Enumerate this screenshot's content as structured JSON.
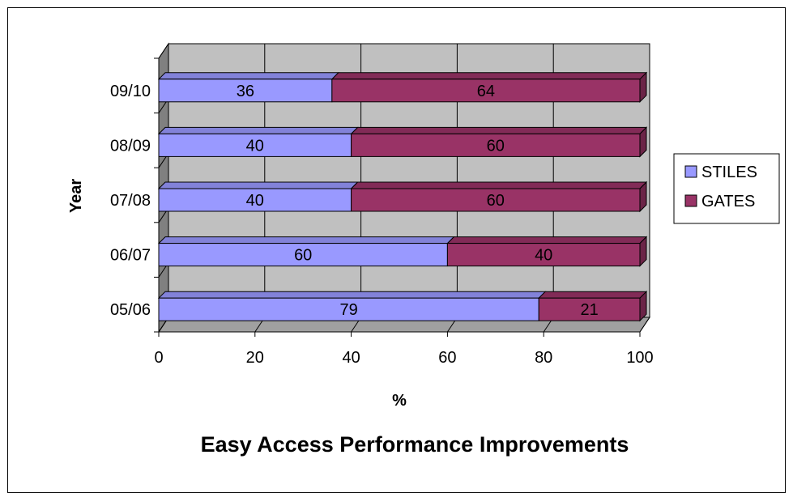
{
  "chart_data": {
    "type": "bar",
    "orientation": "horizontal",
    "stacked": true,
    "three_d": true,
    "title": "Easy Access Performance Improvements",
    "xlabel": "%",
    "ylabel": "Year",
    "xlim": [
      0,
      100
    ],
    "x_ticks": [
      "0",
      "20",
      "40",
      "60",
      "80",
      "100"
    ],
    "categories": [
      "05/06",
      "06/07",
      "07/08",
      "08/09",
      "09/10"
    ],
    "series": [
      {
        "name": "STILES",
        "values": [
          79,
          60,
          40,
          40,
          36
        ],
        "color": "#9999ff"
      },
      {
        "name": "GATES",
        "values": [
          21,
          40,
          60,
          60,
          64
        ],
        "color": "#993366"
      }
    ],
    "grid": true,
    "legend_position": "right",
    "wall_color": "#c0c0c0"
  }
}
